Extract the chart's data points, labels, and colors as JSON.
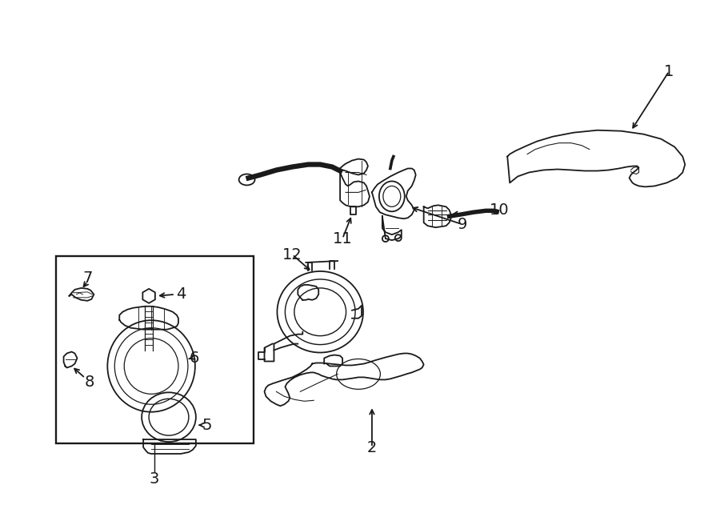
{
  "background_color": "#ffffff",
  "line_color": "#1a1a1a",
  "line_width": 1.3,
  "fig_width": 9.0,
  "fig_height": 6.61,
  "font_size": 14
}
